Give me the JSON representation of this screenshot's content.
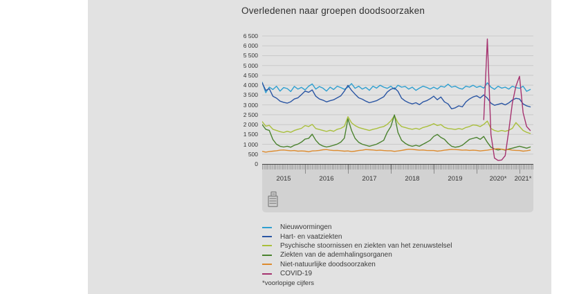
{
  "page": {
    "background": "#ffffff",
    "panel_background": "#e2e2e2",
    "axis_band_background": "#d2d2d2",
    "gridline_color": "#c9c9c9",
    "axis_line_color": "#454545",
    "text_color": "#333333"
  },
  "title": "Overledenen naar groepen doodsoorzaken",
  "footnote": "*voorlopige cijfers",
  "table_icon": "data-table-icon",
  "chart_data": {
    "type": "line",
    "title": "Overledenen naar groepen doodsoorzaken",
    "grid": true,
    "legend_position": "bottom-left",
    "y_axis": {
      "min": 0,
      "max": 6500,
      "step": 500,
      "tick_labels": [
        "6 500",
        "6 000",
        "5 500",
        "5 000",
        "4 500",
        "4 000",
        "3 500",
        "3 000",
        "2 500",
        "2 000",
        "1 500",
        "1 000",
        "500",
        "0"
      ]
    },
    "x_axis": {
      "year_labels": [
        "2015",
        "2016",
        "2017",
        "2018",
        "2019",
        "2020*",
        "2021*"
      ],
      "range_years": [
        2015.0,
        2021.3
      ],
      "minor_tick_unit": "week"
    },
    "series": [
      {
        "name": "Nieuwvormingen",
        "color": "#2e9fd0",
        "x_start": 2015.0,
        "x_step_years": 0.08333,
        "values": [
          4150,
          3620,
          3900,
          3780,
          3950,
          3700,
          3880,
          3830,
          3680,
          3940,
          3800,
          3890,
          3760,
          3950,
          4060,
          3800,
          3930,
          3850,
          3700,
          3900,
          3780,
          3950,
          3880,
          3790,
          3900,
          4080,
          3840,
          3950,
          3800,
          3890,
          3740,
          3950,
          3850,
          4000,
          3900,
          3840,
          3950,
          3790,
          4000,
          3900,
          3940,
          3800,
          3900,
          3740,
          3850,
          3950,
          3890,
          3800,
          3900,
          3800,
          3950,
          3900,
          4050,
          3900,
          3950,
          3850,
          3800,
          3950,
          3900,
          4000,
          3890,
          3950,
          3850,
          4120,
          3900,
          3790,
          3950,
          3850,
          3900,
          3800,
          3950,
          3880,
          3840,
          3950,
          3690,
          3780
        ]
      },
      {
        "name": "Hart- en vaatziekten",
        "color": "#2a55a3",
        "x_start": 2015.0,
        "x_step_years": 0.08333,
        "values": [
          4120,
          3730,
          3820,
          3440,
          3340,
          3190,
          3130,
          3090,
          3160,
          3300,
          3360,
          3520,
          3700,
          3640,
          3760,
          3440,
          3300,
          3240,
          3150,
          3210,
          3260,
          3360,
          3460,
          3700,
          3990,
          3740,
          3540,
          3360,
          3290,
          3190,
          3110,
          3160,
          3210,
          3310,
          3410,
          3650,
          3790,
          3860,
          3690,
          3340,
          3200,
          3110,
          3050,
          3110,
          3010,
          3150,
          3210,
          3310,
          3440,
          3260,
          3400,
          3150,
          3050,
          2800,
          2850,
          2950,
          2900,
          3150,
          3300,
          3400,
          3460,
          3350,
          3510,
          3340,
          3090,
          2980,
          3030,
          3080,
          3000,
          3100,
          3250,
          3330,
          3300,
          3050,
          2950,
          2900
        ]
      },
      {
        "name": "Psychische stoornissen en ziekten van het zenuwstelsel",
        "color": "#a9bf3b",
        "x_start": 2015.0,
        "x_step_years": 0.08333,
        "values": [
          2150,
          1920,
          1960,
          1760,
          1700,
          1640,
          1600,
          1660,
          1610,
          1700,
          1760,
          1810,
          1950,
          1900,
          2010,
          1800,
          1750,
          1700,
          1650,
          1710,
          1660,
          1760,
          1810,
          1910,
          2400,
          2090,
          1950,
          1850,
          1800,
          1750,
          1700,
          1760,
          1800,
          1860,
          1900,
          2010,
          2190,
          2450,
          2090,
          1900,
          1850,
          1800,
          1760,
          1810,
          1760,
          1850,
          1900,
          1960,
          2050,
          1950,
          2000,
          1860,
          1800,
          1780,
          1750,
          1800,
          1760,
          1850,
          1900,
          1980,
          1960,
          1900,
          2010,
          2180,
          1800,
          1700,
          1650,
          1700,
          1660,
          1710,
          1810,
          2100,
          1900,
          1700,
          1610,
          1550
        ]
      },
      {
        "name": "Ziekten van de ademhalingsorganen",
        "color": "#4a822e",
        "x_start": 2015.0,
        "x_step_years": 0.08333,
        "values": [
          2000,
          1760,
          1700,
          1240,
          1000,
          900,
          860,
          900,
          850,
          950,
          1010,
          1110,
          1260,
          1300,
          1510,
          1200,
          1000,
          910,
          860,
          900,
          950,
          1010,
          1110,
          1310,
          2290,
          1700,
          1300,
          1100,
          1000,
          950,
          900,
          950,
          1000,
          1100,
          1200,
          1610,
          1900,
          2490,
          1600,
          1200,
          1050,
          950,
          900,
          950,
          900,
          1000,
          1100,
          1200,
          1400,
          1500,
          1350,
          1250,
          1050,
          900,
          850,
          880,
          950,
          1100,
          1250,
          1300,
          1350,
          1250,
          1400,
          1100,
          850,
          760,
          710,
          750,
          700,
          760,
          800,
          850,
          900,
          850,
          800,
          860
        ]
      },
      {
        "name": "Niet-natuurlijke doodsoorzaken",
        "color": "#dd8b2e",
        "x_start": 2015.0,
        "x_step_years": 0.08333,
        "values": [
          640,
          600,
          630,
          650,
          670,
          700,
          710,
          690,
          670,
          680,
          650,
          660,
          650,
          620,
          660,
          670,
          690,
          720,
          730,
          700,
          680,
          690,
          670,
          650,
          660,
          630,
          650,
          680,
          700,
          730,
          720,
          710,
          690,
          700,
          680,
          670,
          670,
          640,
          660,
          690,
          720,
          750,
          740,
          720,
          700,
          710,
          690,
          680,
          680,
          650,
          670,
          700,
          720,
          740,
          730,
          720,
          700,
          710,
          690,
          700,
          690,
          660,
          680,
          700,
          730,
          760,
          780,
          750,
          720,
          730,
          700,
          690,
          680,
          650,
          670,
          700
        ]
      },
      {
        "name": "COVID-19",
        "color": "#a5326f",
        "x_start": 2020.1667,
        "x_step_years": 0.08333,
        "values": [
          2250,
          6350,
          1500,
          300,
          180,
          200,
          420,
          1700,
          3100,
          3950,
          4450,
          2600,
          1900,
          1700
        ]
      }
    ]
  }
}
